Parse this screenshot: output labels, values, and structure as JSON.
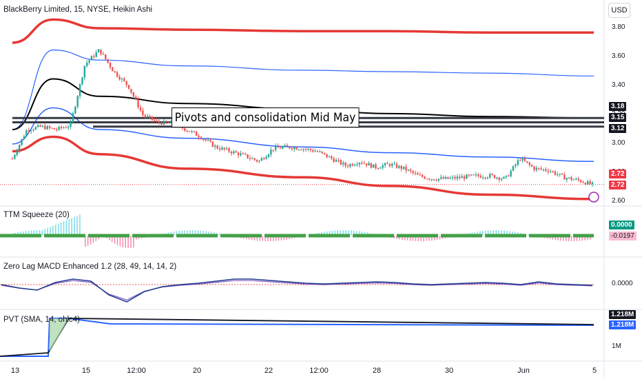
{
  "title": "BlackBerry Limited, 15, NYSE, Heikin Ashi",
  "currency_button": "USD",
  "annotation_text": "Pivots and consolidation  Mid May",
  "colors": {
    "up": "#26a69a",
    "down": "#ef5350",
    "band_outer": "#e53935",
    "band_inner": "#2962ff",
    "band_mid": "#000000",
    "ttm_zero": "#43a047",
    "ttm_pos": "#80deea",
    "ttm_neg": "#f48fb1"
  },
  "price_axis": {
    "ticks": [
      "3.80",
      "3.60",
      "3.40",
      "3.20",
      "3.00",
      "2.80",
      "2.60"
    ],
    "badges": [
      {
        "text": "3.18",
        "color": "#131722"
      },
      {
        "text": "3.15",
        "color": "#131722"
      },
      {
        "text": "3.12",
        "color": "#131722"
      },
      {
        "text": "2.72",
        "color": "#f23645"
      },
      {
        "text": "2.72",
        "color": "#f23645"
      }
    ]
  },
  "ttm": {
    "title": "TTM Squeeze (20)",
    "badges": [
      {
        "text": "0.0000",
        "color": "#089981",
        "text_color": "#ffffff"
      },
      {
        "text": "-0.0197",
        "color": "#f8bbd0",
        "text_color": "#131722"
      }
    ]
  },
  "macd": {
    "title": "Zero Lag MACD Enhanced 1.2 (28, 49, 14, 14, 2)",
    "tick": "0.0000"
  },
  "pvt": {
    "title": "PVT (SMA, 14, ohlc4)",
    "badges": [
      {
        "text": "1.218M",
        "color": "#131722"
      },
      {
        "text": "1.218M",
        "color": "#2962ff"
      }
    ],
    "tick": "1M"
  },
  "x_axis": {
    "ticks": [
      "13",
      "15",
      "12:00",
      "20",
      "22",
      "12:00",
      "28",
      "30",
      "Jun",
      "5"
    ]
  },
  "chart_data": {
    "type": "candlestick",
    "title": "BlackBerry Limited, 15, NYSE, Heikin Ashi",
    "y_axis": {
      "ticks": [
        3.8,
        3.6,
        3.4,
        3.2,
        3.0,
        2.8,
        2.6
      ],
      "ylim": [
        2.58,
        3.88
      ]
    },
    "x_ticks": [
      "13",
      "15",
      "12:00",
      "20",
      "22",
      "12:00",
      "28",
      "30",
      "Jun",
      "5"
    ],
    "horizontal_levels": [
      3.18,
      3.15,
      3.12
    ],
    "last_price": 2.72,
    "close_approx": [
      2.9,
      3.1,
      3.12,
      3.1,
      3.13,
      3.55,
      3.65,
      3.5,
      3.4,
      3.2,
      3.15,
      3.14,
      3.1,
      3.05,
      2.98,
      2.95,
      2.92,
      2.88,
      2.97,
      2.98,
      2.97,
      2.95,
      2.9,
      2.85,
      2.88,
      2.84,
      2.86,
      2.83,
      2.78,
      2.76,
      2.76,
      2.77,
      2.78,
      2.78,
      2.76,
      2.9,
      2.83,
      2.82,
      2.77,
      2.75,
      2.72
    ],
    "bands": {
      "outer_upper": [
        3.7,
        3.86,
        3.8,
        3.79,
        3.78,
        3.78,
        3.77,
        3.77
      ],
      "inner_upper": [
        3.1,
        3.65,
        3.58,
        3.54,
        3.51,
        3.5,
        3.49,
        3.47
      ],
      "middle": [
        3.1,
        3.45,
        3.33,
        3.28,
        3.24,
        3.21,
        3.19,
        3.18
      ],
      "inner_lower": [
        3.0,
        3.25,
        3.1,
        3.04,
        2.98,
        2.94,
        2.91,
        2.88
      ],
      "outer_lower": [
        2.95,
        3.05,
        2.93,
        2.83,
        2.77,
        2.71,
        2.65,
        2.62
      ]
    }
  }
}
